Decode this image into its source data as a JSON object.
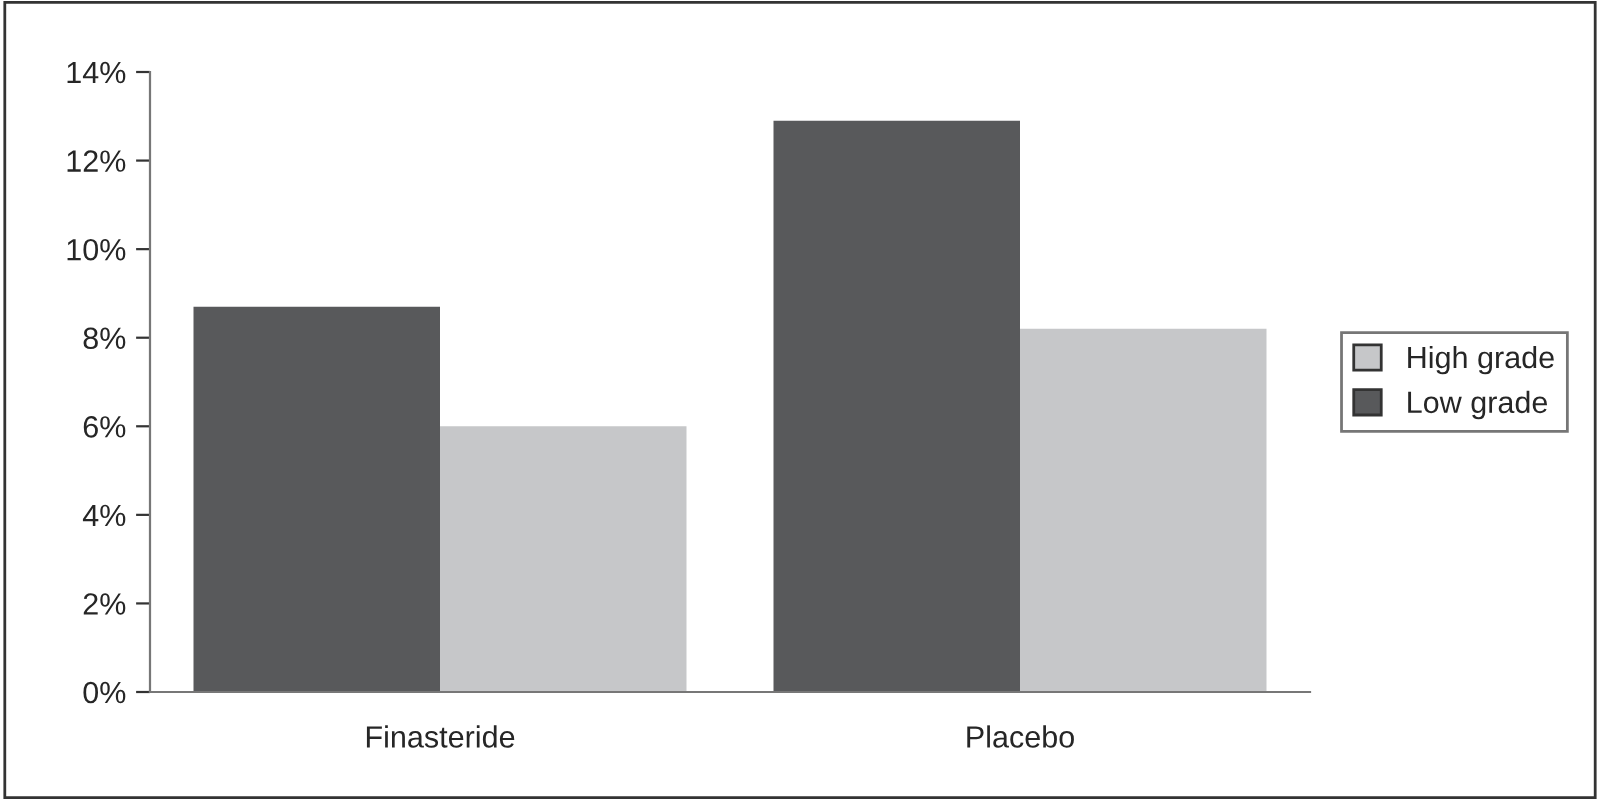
{
  "chart_data": {
    "type": "bar",
    "categories": [
      "Finasteride",
      "Placebo"
    ],
    "series": [
      {
        "name": "Low grade",
        "color": "#58595b",
        "values": [
          8.7,
          12.9
        ]
      },
      {
        "name": "High grade",
        "color": "#c6c7c9",
        "values": [
          6.0,
          8.2
        ]
      }
    ],
    "ylim": [
      0,
      14
    ],
    "yticks": [
      {
        "value": 0,
        "label": "0%"
      },
      {
        "value": 2,
        "label": "2%"
      },
      {
        "value": 4,
        "label": "4%"
      },
      {
        "value": 6,
        "label": "6%"
      },
      {
        "value": 8,
        "label": "8%"
      },
      {
        "value": 10,
        "label": "10%"
      },
      {
        "value": 12,
        "label": "12%"
      },
      {
        "value": 14,
        "label": "14%"
      }
    ],
    "grid": false,
    "legend": "right"
  }
}
